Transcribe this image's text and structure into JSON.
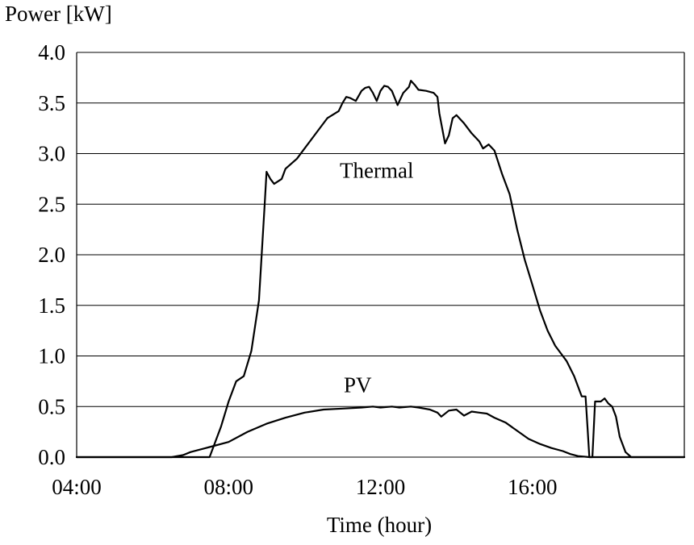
{
  "chart_data": {
    "type": "line",
    "ylabel": "Power [kW]",
    "xlabel": "Time (hour)",
    "xlim": [
      4,
      20
    ],
    "ylim": [
      0,
      4
    ],
    "x_ticks": [
      4,
      8,
      12,
      16
    ],
    "x_tick_labels": [
      "04:00",
      "08:00",
      "12:00",
      "16:00"
    ],
    "y_ticks": [
      0,
      0.5,
      1,
      1.5,
      2,
      2.5,
      3,
      3.5,
      4
    ],
    "y_tick_labels": [
      "0.0",
      "0.5",
      "1.0",
      "1.5",
      "2.0",
      "2.5",
      "3.0",
      "3.5",
      "4.0"
    ],
    "grid": "horizontal",
    "legend": "none",
    "series": [
      {
        "name": "Thermal",
        "points": [
          [
            4.0,
            0
          ],
          [
            7.5,
            0
          ],
          [
            7.8,
            0.3
          ],
          [
            8.0,
            0.55
          ],
          [
            8.2,
            0.75
          ],
          [
            8.4,
            0.8
          ],
          [
            8.6,
            1.05
          ],
          [
            8.8,
            1.55
          ],
          [
            8.95,
            2.5
          ],
          [
            9.0,
            2.82
          ],
          [
            9.1,
            2.75
          ],
          [
            9.2,
            2.7
          ],
          [
            9.4,
            2.75
          ],
          [
            9.5,
            2.85
          ],
          [
            9.8,
            2.95
          ],
          [
            10.0,
            3.05
          ],
          [
            10.3,
            3.2
          ],
          [
            10.6,
            3.35
          ],
          [
            10.9,
            3.42
          ],
          [
            11.0,
            3.5
          ],
          [
            11.1,
            3.56
          ],
          [
            11.2,
            3.55
          ],
          [
            11.35,
            3.52
          ],
          [
            11.5,
            3.62
          ],
          [
            11.6,
            3.65
          ],
          [
            11.7,
            3.66
          ],
          [
            11.8,
            3.6
          ],
          [
            11.9,
            3.52
          ],
          [
            12.0,
            3.62
          ],
          [
            12.1,
            3.67
          ],
          [
            12.2,
            3.66
          ],
          [
            12.3,
            3.62
          ],
          [
            12.45,
            3.48
          ],
          [
            12.6,
            3.6
          ],
          [
            12.75,
            3.66
          ],
          [
            12.8,
            3.72
          ],
          [
            12.9,
            3.68
          ],
          [
            13.0,
            3.63
          ],
          [
            13.2,
            3.62
          ],
          [
            13.4,
            3.6
          ],
          [
            13.5,
            3.56
          ],
          [
            13.55,
            3.4
          ],
          [
            13.7,
            3.1
          ],
          [
            13.8,
            3.18
          ],
          [
            13.9,
            3.35
          ],
          [
            14.0,
            3.38
          ],
          [
            14.2,
            3.3
          ],
          [
            14.4,
            3.2
          ],
          [
            14.6,
            3.12
          ],
          [
            14.7,
            3.05
          ],
          [
            14.85,
            3.09
          ],
          [
            15.0,
            3.03
          ],
          [
            15.2,
            2.8
          ],
          [
            15.4,
            2.6
          ],
          [
            15.6,
            2.25
          ],
          [
            15.8,
            1.95
          ],
          [
            16.0,
            1.7
          ],
          [
            16.2,
            1.45
          ],
          [
            16.4,
            1.25
          ],
          [
            16.6,
            1.1
          ],
          [
            16.8,
            1.0
          ],
          [
            16.9,
            0.95
          ],
          [
            17.1,
            0.8
          ],
          [
            17.3,
            0.6
          ],
          [
            17.4,
            0.6
          ],
          [
            17.45,
            0.3
          ],
          [
            17.5,
            0.0
          ],
          [
            17.58,
            0.0
          ],
          [
            17.65,
            0.55
          ],
          [
            17.8,
            0.55
          ],
          [
            17.9,
            0.58
          ],
          [
            18.0,
            0.53
          ],
          [
            18.1,
            0.5
          ],
          [
            18.2,
            0.4
          ],
          [
            18.3,
            0.2
          ],
          [
            18.45,
            0.05
          ],
          [
            18.6,
            0
          ],
          [
            20.0,
            0
          ]
        ]
      },
      {
        "name": "PV",
        "points": [
          [
            4.0,
            0
          ],
          [
            6.5,
            0
          ],
          [
            6.8,
            0.02
          ],
          [
            7.0,
            0.05
          ],
          [
            7.5,
            0.1
          ],
          [
            8.0,
            0.15
          ],
          [
            8.5,
            0.25
          ],
          [
            9.0,
            0.33
          ],
          [
            9.5,
            0.39
          ],
          [
            10.0,
            0.44
          ],
          [
            10.5,
            0.47
          ],
          [
            11.0,
            0.48
          ],
          [
            11.5,
            0.49
          ],
          [
            11.8,
            0.5
          ],
          [
            12.0,
            0.49
          ],
          [
            12.3,
            0.5
          ],
          [
            12.5,
            0.49
          ],
          [
            12.8,
            0.5
          ],
          [
            13.0,
            0.49
          ],
          [
            13.3,
            0.47
          ],
          [
            13.5,
            0.44
          ],
          [
            13.6,
            0.4
          ],
          [
            13.8,
            0.46
          ],
          [
            14.0,
            0.47
          ],
          [
            14.2,
            0.41
          ],
          [
            14.4,
            0.45
          ],
          [
            14.6,
            0.44
          ],
          [
            14.8,
            0.43
          ],
          [
            15.0,
            0.39
          ],
          [
            15.3,
            0.34
          ],
          [
            15.6,
            0.26
          ],
          [
            15.9,
            0.18
          ],
          [
            16.2,
            0.13
          ],
          [
            16.5,
            0.09
          ],
          [
            16.8,
            0.06
          ],
          [
            17.0,
            0.03
          ],
          [
            17.2,
            0.01
          ],
          [
            17.5,
            0
          ],
          [
            20.0,
            0
          ]
        ]
      }
    ],
    "annotations": [
      {
        "text": "Thermal",
        "x": 11.9,
        "y": 2.76
      },
      {
        "text": "PV",
        "x": 11.4,
        "y": 0.64
      }
    ]
  }
}
